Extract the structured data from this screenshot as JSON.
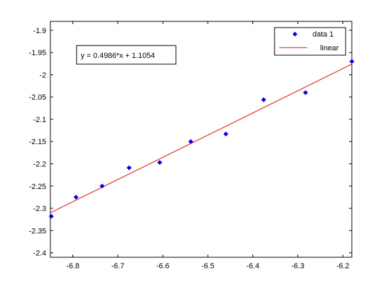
{
  "chart_data": {
    "type": "scatter",
    "xlim": [
      -6.85,
      -6.18
    ],
    "ylim": [
      -2.41,
      -1.88
    ],
    "xticks": [
      -6.8,
      -6.7,
      -6.6,
      -6.5,
      -6.4,
      -6.3,
      -6.2
    ],
    "yticks": [
      -1.9,
      -1.95,
      -2.0,
      -2.05,
      -2.1,
      -2.15,
      -2.2,
      -2.25,
      -2.3,
      -2.35,
      -2.4
    ],
    "xtick_labels": [
      "-6.8",
      "-6.7",
      "-6.6",
      "-6.5",
      "-6.4",
      "-6.3",
      "-6.2"
    ],
    "ytick_labels": [
      "-1.9",
      "-1.95",
      "-2",
      "-2.05",
      "-2.1",
      "-2.15",
      "-2.2",
      "-2.25",
      "-2.3",
      "-2.35",
      "-2.4"
    ],
    "grid": false,
    "legend_position": "top-right",
    "series": [
      {
        "name": "data 1",
        "type": "scatter",
        "color": "#0000ff",
        "x": [
          -6.848,
          -6.793,
          -6.735,
          -6.675,
          -6.607,
          -6.538,
          -6.46,
          -6.376,
          -6.283,
          -6.18
        ],
        "y": [
          -2.318,
          -2.275,
          -2.25,
          -2.209,
          -2.197,
          -2.15,
          -2.133,
          -2.056,
          -2.04,
          -1.97
        ]
      },
      {
        "name": "linear",
        "type": "line",
        "color": "#ff0000",
        "slope": 0.4986,
        "intercept": 1.1054,
        "x": [
          -6.85,
          -6.18
        ]
      }
    ],
    "annotation": "y = 0.4986*x + 1.1054"
  }
}
